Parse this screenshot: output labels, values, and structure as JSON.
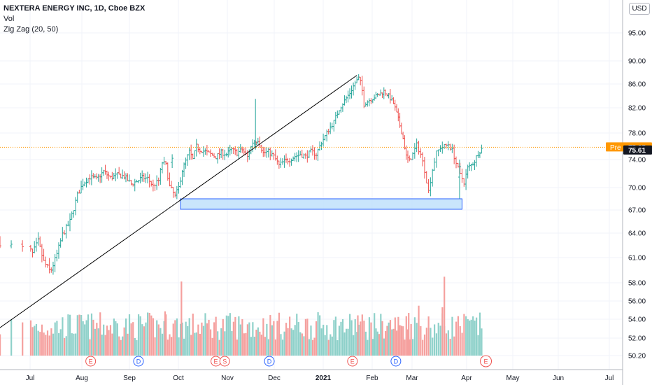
{
  "header": {
    "title": "NEXTERA ENERGY INC, 1D, Cboe BZX",
    "vol_label": "Vol",
    "indicator_label": "Zig Zag (20, 50)",
    "currency_button": "USD"
  },
  "price_tags": {
    "pre_label": "Pre",
    "pre_value": "75.85",
    "last_value": "75.61",
    "pre_color": "#ff9800",
    "last_color": "#131722"
  },
  "colors": {
    "up": "#26a69a",
    "down": "#ef5350",
    "vol_up": "#8fd1ca",
    "vol_down": "#f5a09e",
    "zone_fill": "#bbdefb",
    "zone_stroke": "#2962ff",
    "trendline": "#000000",
    "pre_line": "#ff9800"
  },
  "chart_data": {
    "type": "ohlc",
    "y_ticks": [
      "50.20",
      "52.00",
      "54.00",
      "56.00",
      "58.00",
      "61.00",
      "64.00",
      "67.00",
      "70.00",
      "74.00",
      "78.00",
      "82.00",
      "86.00",
      "90.00",
      "95.00"
    ],
    "y_tick_values": [
      50.2,
      52,
      54,
      56,
      58,
      61,
      64,
      67,
      70,
      74,
      78,
      82,
      86,
      90,
      95
    ],
    "x_ticks": [
      "Jul",
      "Aug",
      "Sep",
      "Oct",
      "Nov",
      "Dec",
      "2021",
      "Feb",
      "Mar",
      "Apr",
      "May",
      "Jun",
      "Jul"
    ],
    "x_tick_days": [
      3,
      34,
      65,
      95,
      126,
      156,
      187,
      218,
      246,
      277,
      307,
      338,
      368
    ],
    "start_date": "2020-06-28",
    "days_per_bar": 1.4,
    "price_path": [
      [
        0,
        62.8
      ],
      [
        8,
        61.5
      ],
      [
        14,
        63.0
      ],
      [
        20,
        60.5
      ],
      [
        27,
        59.3
      ],
      [
        33,
        61.0
      ],
      [
        40,
        63.8
      ],
      [
        48,
        65.5
      ],
      [
        56,
        69.0
      ],
      [
        62,
        70.6
      ],
      [
        70,
        71.5
      ],
      [
        78,
        71.2
      ],
      [
        86,
        72.3
      ],
      [
        94,
        71.4
      ],
      [
        102,
        71.8
      ],
      [
        110,
        71.6
      ],
      [
        118,
        70.5
      ],
      [
        124,
        70.9
      ],
      [
        130,
        71.4
      ],
      [
        136,
        71.3
      ],
      [
        142,
        70.2
      ],
      [
        148,
        71.0
      ],
      [
        152,
        73.6
      ],
      [
        156,
        73.2
      ],
      [
        160,
        70.2
      ],
      [
        166,
        68.8
      ],
      [
        170,
        70.0
      ],
      [
        174,
        72.5
      ],
      [
        178,
        73.8
      ],
      [
        182,
        75.2
      ],
      [
        186,
        74.0
      ],
      [
        190,
        76.0
      ],
      [
        194,
        75.5
      ],
      [
        200,
        75.2
      ],
      [
        206,
        74.8
      ],
      [
        212,
        74.4
      ],
      [
        218,
        75.1
      ],
      [
        224,
        74.8
      ],
      [
        230,
        75.5
      ],
      [
        236,
        75.0
      ],
      [
        242,
        75.5
      ],
      [
        248,
        74.4
      ],
      [
        254,
        76.6
      ],
      [
        260,
        77.0
      ],
      [
        266,
        75.0
      ],
      [
        272,
        75.2
      ],
      [
        278,
        74.5
      ],
      [
        284,
        73.2
      ],
      [
        290,
        73.8
      ],
      [
        296,
        74.0
      ],
      [
        302,
        74.5
      ],
      [
        308,
        74.8
      ],
      [
        314,
        74.5
      ],
      [
        320,
        75.2
      ],
      [
        326,
        74.8
      ],
      [
        332,
        76.6
      ],
      [
        336,
        77.5
      ],
      [
        340,
        78.5
      ],
      [
        346,
        79.8
      ],
      [
        352,
        81.8
      ],
      [
        358,
        83.2
      ],
      [
        364,
        84.5
      ],
      [
        370,
        86.2
      ],
      [
        374,
        87.0
      ],
      [
        377,
        86.0
      ],
      [
        380,
        82.6
      ],
      [
        386,
        83.3
      ],
      [
        392,
        83.8
      ],
      [
        398,
        84.2
      ],
      [
        404,
        84.8
      ],
      [
        410,
        84.0
      ],
      [
        416,
        82.8
      ],
      [
        422,
        80.2
      ],
      [
        428,
        77.2
      ],
      [
        432,
        74.5
      ],
      [
        436,
        73.8
      ],
      [
        440,
        74.8
      ],
      [
        444,
        76.2
      ],
      [
        448,
        74.8
      ],
      [
        452,
        72.5
      ],
      [
        456,
        69.5
      ],
      [
        460,
        72.6
      ],
      [
        464,
        75.0
      ],
      [
        468,
        75.8
      ],
      [
        472,
        76.0
      ],
      [
        476,
        76.3
      ],
      [
        480,
        75.4
      ],
      [
        484,
        73.5
      ],
      [
        488,
        71.8
      ],
      [
        492,
        70.8
      ],
      [
        496,
        72.8
      ],
      [
        500,
        73.2
      ],
      [
        504,
        73.8
      ],
      [
        508,
        75.0
      ],
      [
        512,
        75.61
      ]
    ],
    "special_bars": [
      {
        "day": 152,
        "open": 73.6,
        "high": 74.8,
        "low": 72.8,
        "close": 74.2
      },
      {
        "day": 240,
        "open": 76.0,
        "high": 83.5,
        "low": 75.5,
        "close": 76.3
      },
      {
        "day": 455,
        "open": 71.5,
        "high": 74.0,
        "low": 68.5,
        "close": 73.0
      }
    ],
    "volume_spikes": [
      {
        "day": 155,
        "rel": 0.55
      },
      {
        "day": 173,
        "rel": 0.92
      },
      {
        "day": 373,
        "rel": 0.5
      },
      {
        "day": 435,
        "rel": 0.53
      },
      {
        "day": 446,
        "rel": 0.62
      },
      {
        "day": 470,
        "rel": 0.6
      },
      {
        "day": 472,
        "rel": 0.98
      }
    ],
    "zigzag_line": {
      "from": {
        "day": 0,
        "price": 53.1
      },
      "to": {
        "day": 372,
        "price": 87.5
      }
    },
    "support_zone": {
      "from_day": 172,
      "to_day": 490,
      "top": 68.5,
      "bottom": 67.1
    },
    "pre_market_price": 75.85,
    "last_price": 75.61,
    "events": [
      {
        "day": 71,
        "letter": "E",
        "kind": "earnings"
      },
      {
        "day": 126,
        "letter": "D",
        "kind": "dividend"
      },
      {
        "day": 212,
        "letter": "E",
        "kind": "earnings"
      },
      {
        "day": 222,
        "letter": "S",
        "kind": "split"
      },
      {
        "day": 273,
        "letter": "D",
        "kind": "dividend"
      },
      {
        "day": 367,
        "letter": "E",
        "kind": "earnings"
      },
      {
        "day": 419,
        "letter": "D",
        "kind": "dividend"
      },
      {
        "day": 517,
        "letter": "E",
        "kind": "earnings",
        "future": true
      }
    ]
  }
}
